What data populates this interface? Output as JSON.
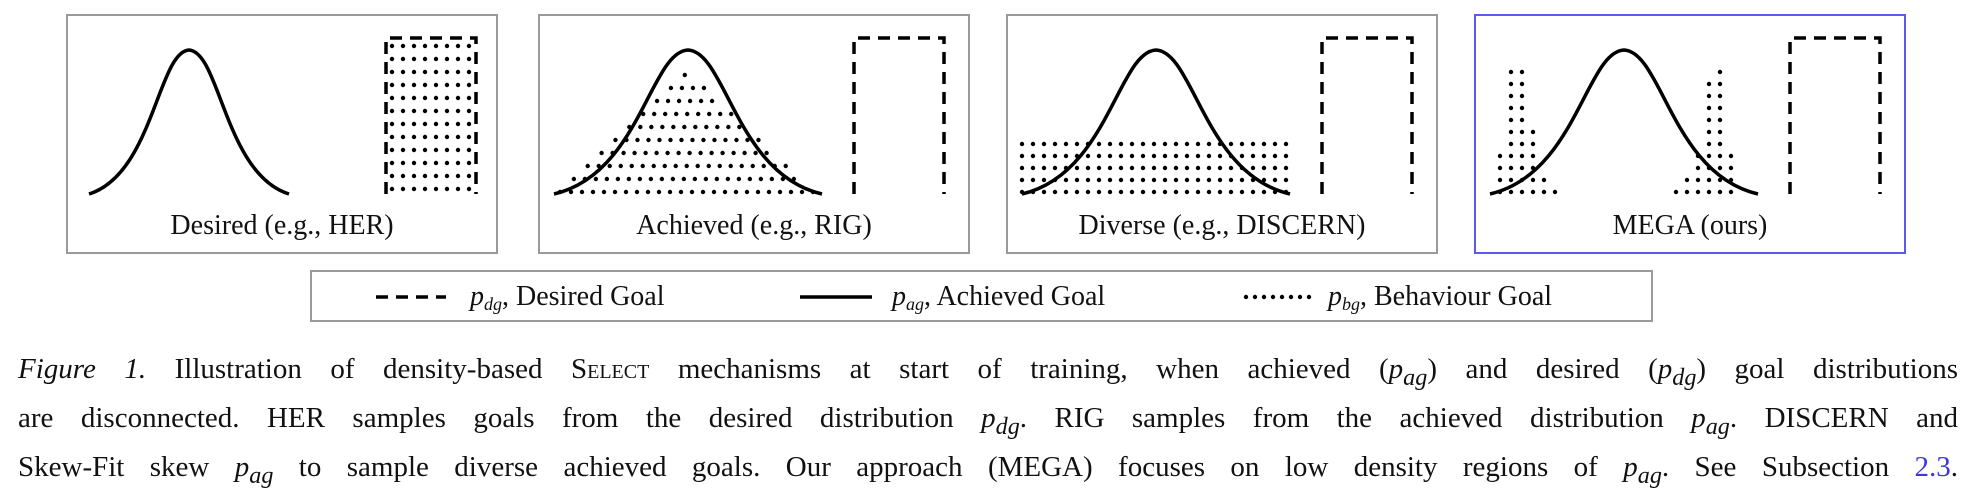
{
  "panels": [
    {
      "label": "Desired (e.g., HER)"
    },
    {
      "label": "Achieved (e.g., RIG)"
    },
    {
      "label": "Diverse (e.g., DISCERN)"
    },
    {
      "label": "MEGA (ours)"
    }
  ],
  "legend": {
    "desired": {
      "symbol": "p",
      "sub": "dg",
      "text": ", Desired Goal"
    },
    "achieved": {
      "symbol": "p",
      "sub": "ag",
      "text": ", Achieved Goal"
    },
    "behaviour": {
      "symbol": "p",
      "sub": "bg",
      "text": ", Behaviour Goal"
    }
  },
  "caption": {
    "fig_label": "Figure 1.",
    "l1_a": " Illustration of density-based ",
    "l1_select": "Select",
    "l1_b": " mechanisms at start of training, when achieved (",
    "l1_c": ") and desired (",
    "l1_d": ") goal distributions",
    "l2_a": "are disconnected. HER samples goals from the desired distribution ",
    "l2_b": ". RIG samples from the achieved distribution ",
    "l2_c": ". DISCERN and",
    "l3_a": "Skew-Fit skew ",
    "l3_b": " to sample diverse achieved goals. Our approach (MEGA) focuses on low density regions of ",
    "l3_c": ". See Subsection ",
    "l3_link": "2.3",
    "l3_end": ".",
    "sym_p": "p",
    "sub_ag": "ag",
    "sub_dg": "dg"
  },
  "colors": {
    "panel_border": "#9a9a9a",
    "highlight_border": "#5a5af0",
    "link": "#3a3ad0"
  }
}
